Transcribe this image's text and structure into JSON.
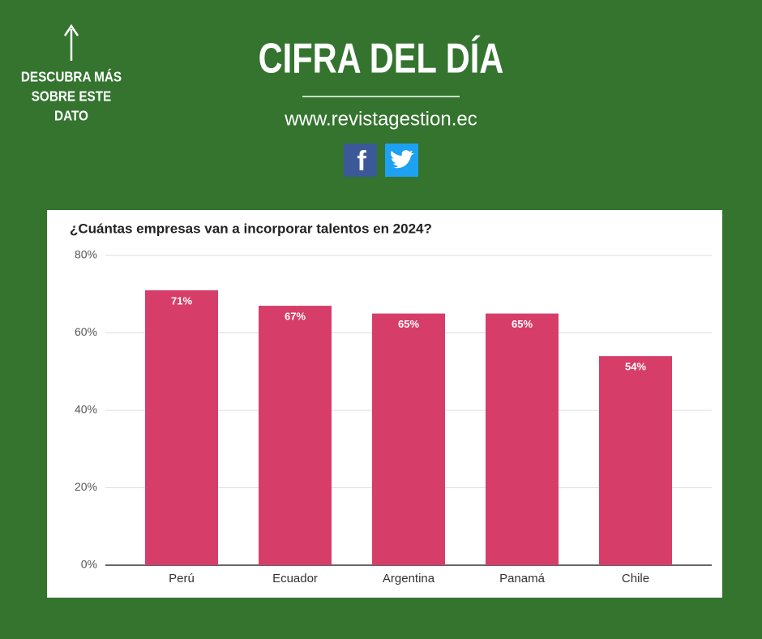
{
  "header": {
    "title": "CIFRA DEL DÍA",
    "url": "www.revistagestion.ec",
    "side_note": [
      "DESCUBRA MÁS",
      "SOBRE ESTE",
      "DATO"
    ]
  },
  "chart_data": {
    "type": "bar",
    "title": "¿Cuántas empresas van a incorporar talentos en 2024?",
    "categories": [
      "Perú",
      "Ecuador",
      "Argentina",
      "Panamá",
      "Chile"
    ],
    "values": [
      71,
      67,
      65,
      65,
      54
    ],
    "value_labels": [
      "71%",
      "67%",
      "65%",
      "65%",
      "54%"
    ],
    "color": "#d63e69",
    "ylim": [
      0,
      80
    ],
    "yticks": [
      {
        "value": 0,
        "label": "0%"
      },
      {
        "value": 20,
        "label": "20%"
      },
      {
        "value": 40,
        "label": "40%"
      },
      {
        "value": 60,
        "label": "60%"
      },
      {
        "value": 80,
        "label": "80%"
      }
    ],
    "grid": true
  }
}
